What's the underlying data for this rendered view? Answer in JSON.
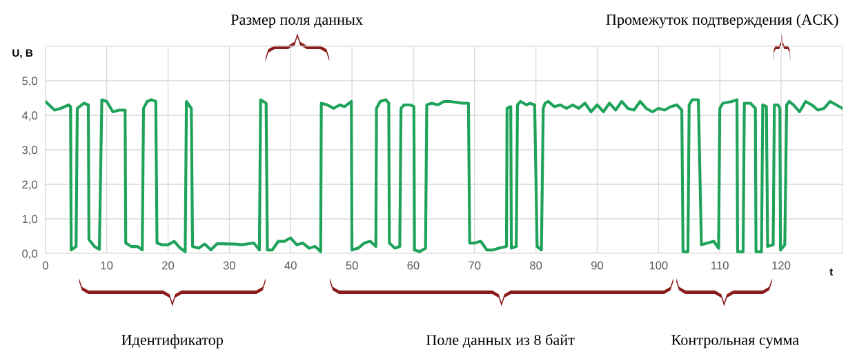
{
  "chart_data": {
    "type": "line",
    "xlabel": "t",
    "ylabel": "U, В",
    "annotations": [
      "Размер поля данных",
      "Промежуток подтверждения (ACK)",
      "Идентификатор",
      "Поле данных из 8 байт",
      "Контрольная сумма"
    ],
    "xlim": [
      0,
      130
    ],
    "ylim": [
      0,
      6
    ],
    "xticks": [
      0,
      10,
      20,
      30,
      40,
      50,
      60,
      70,
      80,
      90,
      100,
      110,
      120
    ],
    "yticks": [
      {
        "value": 0,
        "label": "0,0"
      },
      {
        "value": 1,
        "label": "1,0"
      },
      {
        "value": 2,
        "label": "2,0"
      },
      {
        "value": 3,
        "label": "3,0"
      },
      {
        "value": 4,
        "label": "4,0"
      },
      {
        "value": 5,
        "label": "5,0"
      }
    ],
    "grid": true,
    "marker": "none",
    "line_style": "solid",
    "series": [
      {
        "color": "#1fa35a",
        "x": [
          0,
          1.5,
          2.5,
          3.8,
          4.1,
          4.2,
          5,
          5.2,
          6.3,
          7,
          7.1,
          8,
          8.8,
          9.2,
          10,
          11,
          12,
          13,
          13.1,
          14,
          15,
          15.8,
          16,
          16.6,
          17.3,
          18,
          18.2,
          19,
          20,
          21,
          22,
          22.8,
          23,
          23.8,
          24,
          25,
          26,
          27,
          28,
          29,
          31,
          32,
          34,
          34.9,
          35.1,
          36,
          36.2,
          37,
          38,
          39,
          40,
          41,
          42,
          43,
          44,
          44.9,
          45,
          46,
          47,
          48,
          48.8,
          49.9,
          50,
          51,
          52,
          53,
          53.9,
          54,
          54.6,
          55.5,
          56,
          56.1,
          57,
          57.8,
          58,
          58.5,
          59.5,
          60.1,
          60.2,
          61,
          62,
          62.2,
          63,
          64,
          65,
          66,
          68,
          69,
          69.2,
          70,
          71,
          72,
          73,
          74,
          75.2,
          75.3,
          75.9,
          76,
          76.8,
          77,
          77.5,
          78.5,
          79,
          79.8,
          80.2,
          80.9,
          81.2,
          81.5,
          82,
          83,
          84,
          85,
          86,
          87,
          88,
          89,
          90,
          91,
          92,
          93,
          94,
          95,
          96,
          97,
          98,
          99,
          100,
          101,
          102,
          103,
          103.8,
          104,
          104.8,
          105,
          105.5,
          106.5,
          107,
          108,
          109,
          109.8,
          110,
          110.5,
          112,
          112.8,
          112.9,
          113.8,
          114,
          115,
          115.8,
          115.9,
          116.8,
          117,
          117.6,
          117.8,
          118.7,
          118.9,
          119.5,
          119.8,
          119.9,
          120.6,
          120.9,
          121.3,
          122,
          123,
          124,
          125,
          126,
          127,
          128,
          129,
          130
        ],
        "values": [
          4.4,
          4.15,
          4.2,
          4.3,
          4.25,
          0.1,
          0.2,
          4.2,
          4.35,
          4.3,
          0.4,
          0.2,
          0.12,
          4.45,
          4.4,
          4.1,
          4.15,
          4.15,
          0.3,
          0.2,
          0.2,
          0.1,
          4.2,
          4.4,
          4.45,
          4.4,
          0.3,
          0.25,
          0.25,
          0.35,
          0.15,
          0.05,
          4.4,
          4.2,
          0.2,
          0.15,
          0.27,
          0.1,
          0.28,
          0.28,
          0.27,
          0.25,
          0.3,
          0.1,
          4.45,
          4.35,
          0.1,
          0.1,
          0.35,
          0.35,
          0.45,
          0.25,
          0.3,
          0.15,
          0.2,
          0.05,
          4.35,
          4.3,
          4.2,
          4.3,
          4.25,
          4.4,
          0.1,
          0.15,
          0.3,
          0.35,
          0.2,
          4.2,
          4.4,
          4.45,
          4.35,
          0.3,
          0.15,
          0.2,
          4.2,
          4.3,
          4.3,
          4.25,
          0.1,
          0.05,
          0.15,
          4.3,
          4.35,
          4.3,
          4.4,
          4.4,
          4.35,
          4.35,
          0.3,
          0.3,
          0.35,
          0.1,
          0.1,
          0.15,
          0.2,
          4.2,
          4.25,
          0.15,
          0.2,
          4.3,
          4.4,
          4.3,
          4.35,
          4.3,
          0.2,
          0.1,
          4.2,
          4.35,
          4.4,
          4.25,
          4.3,
          4.2,
          4.3,
          4.2,
          4.35,
          4.1,
          4.3,
          4.1,
          4.35,
          4.15,
          4.4,
          4.2,
          4.15,
          4.4,
          4.2,
          4.1,
          4.2,
          4.15,
          4.25,
          4.3,
          4.15,
          0.05,
          0.05,
          4.3,
          4.45,
          4.45,
          0.25,
          0.3,
          0.35,
          0.15,
          4.2,
          4.35,
          4.4,
          4.45,
          0.05,
          0.05,
          4.35,
          4.35,
          4.2,
          0.05,
          0.05,
          4.3,
          4.25,
          0.2,
          0.25,
          4.3,
          4.3,
          4.2,
          0.1,
          0.25,
          4.3,
          4.4,
          4.3,
          4.1,
          4.4,
          4.3,
          4.15,
          4.2,
          4.4,
          4.3,
          4.2
        ]
      }
    ]
  }
}
